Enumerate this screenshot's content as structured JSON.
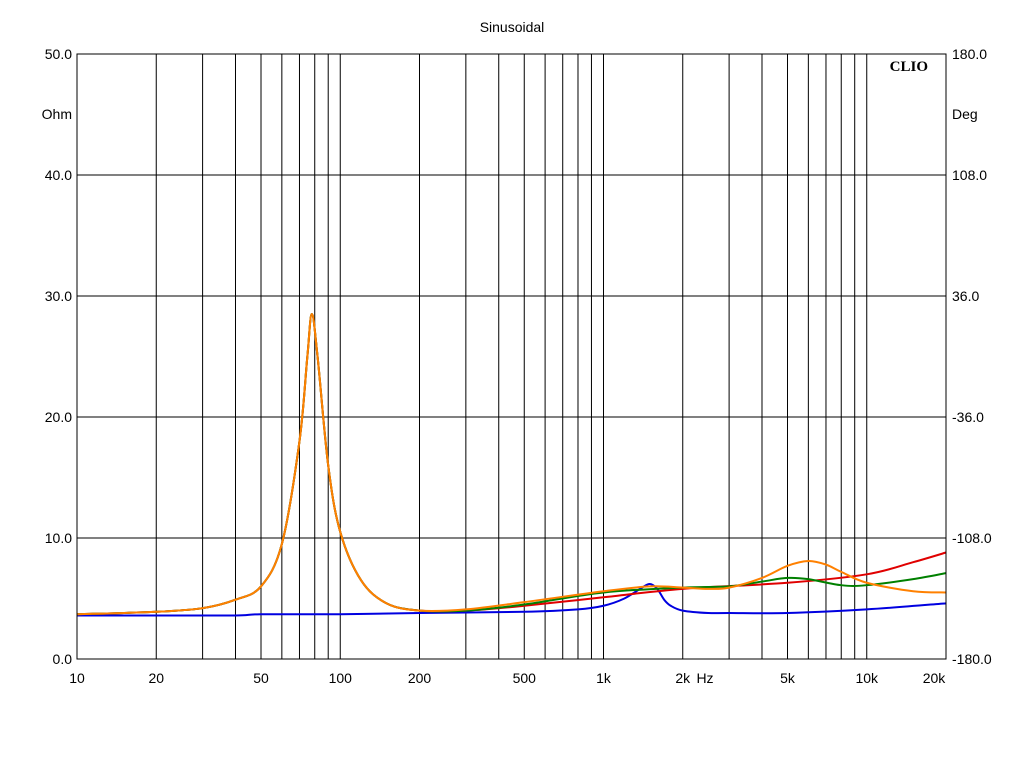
{
  "chart_data": {
    "type": "line",
    "title": "Sinusoidal",
    "brand": "CLIO",
    "x_axis": {
      "scale": "log",
      "range": [
        10,
        20000
      ],
      "unit_label": "Hz",
      "tick_labels": [
        {
          "value": 10,
          "label": "10"
        },
        {
          "value": 20,
          "label": "20"
        },
        {
          "value": 50,
          "label": "50"
        },
        {
          "value": 100,
          "label": "100"
        },
        {
          "value": 200,
          "label": "200"
        },
        {
          "value": 500,
          "label": "500"
        },
        {
          "value": 1000,
          "label": "1k"
        },
        {
          "value": 2000,
          "label": "2k"
        },
        {
          "value": 5000,
          "label": "5k"
        },
        {
          "value": 10000,
          "label": "10k"
        },
        {
          "value": 20000,
          "label": "20k"
        }
      ]
    },
    "y_left": {
      "label": "Ohm",
      "range": [
        0,
        50
      ],
      "ticks": [
        "0.0",
        "10.0",
        "20.0",
        "30.0",
        "40.0",
        "50.0"
      ]
    },
    "y_right": {
      "label": "Deg",
      "range": [
        -180,
        180
      ],
      "ticks": [
        "-180.0",
        "-108.0",
        "-36.0",
        "36.0",
        "108.0",
        "180.0"
      ]
    },
    "grid": true,
    "series": [
      {
        "color": "#0000e0",
        "x": [
          10,
          20,
          40,
          50,
          100,
          200,
          500,
          800,
          1000,
          1200,
          1400,
          1500,
          1600,
          1700,
          1800,
          2000,
          2500,
          3000,
          5000,
          10000,
          20000
        ],
        "y": [
          3.6,
          3.6,
          3.6,
          3.7,
          3.7,
          3.8,
          3.9,
          4.1,
          4.4,
          5.0,
          5.9,
          6.2,
          5.8,
          4.9,
          4.4,
          4.0,
          3.8,
          3.8,
          3.8,
          4.1,
          4.6
        ]
      },
      {
        "color": "#e00000",
        "x": [
          10,
          20,
          30,
          40,
          50,
          60,
          70,
          75,
          78,
          82,
          90,
          100,
          120,
          150,
          200,
          300,
          500,
          1000,
          2000,
          5000,
          10000,
          15000,
          20000
        ],
        "y": [
          3.7,
          3.9,
          4.2,
          4.9,
          6.0,
          9.5,
          18.0,
          25.0,
          28.5,
          25.0,
          16.0,
          10.5,
          6.5,
          4.6,
          4.0,
          4.0,
          4.4,
          5.1,
          5.8,
          6.3,
          7.0,
          8.0,
          8.8
        ]
      },
      {
        "color": "#008000",
        "x": [
          10,
          20,
          30,
          40,
          50,
          60,
          70,
          75,
          78,
          82,
          90,
          100,
          120,
          150,
          200,
          300,
          500,
          1000,
          2000,
          3000,
          4000,
          5000,
          6000,
          8000,
          10000,
          15000,
          20000
        ],
        "y": [
          3.7,
          3.9,
          4.2,
          4.9,
          6.0,
          9.5,
          18.0,
          25.0,
          28.5,
          25.0,
          16.0,
          10.5,
          6.5,
          4.6,
          4.0,
          4.0,
          4.5,
          5.5,
          5.9,
          6.0,
          6.4,
          6.7,
          6.6,
          6.1,
          6.1,
          6.6,
          7.1
        ]
      },
      {
        "color": "#ff8000",
        "x": [
          10,
          20,
          30,
          40,
          50,
          60,
          70,
          75,
          78,
          82,
          90,
          100,
          120,
          150,
          200,
          300,
          500,
          1000,
          1500,
          2000,
          2500,
          3000,
          4000,
          5000,
          6000,
          7000,
          8000,
          10000,
          15000,
          20000
        ],
        "y": [
          3.7,
          3.9,
          4.2,
          4.9,
          6.0,
          9.5,
          18.0,
          25.0,
          28.5,
          25.0,
          16.0,
          10.5,
          6.5,
          4.6,
          4.0,
          4.1,
          4.7,
          5.6,
          6.0,
          5.9,
          5.8,
          5.9,
          6.7,
          7.7,
          8.1,
          7.8,
          7.2,
          6.3,
          5.6,
          5.5
        ]
      }
    ]
  }
}
